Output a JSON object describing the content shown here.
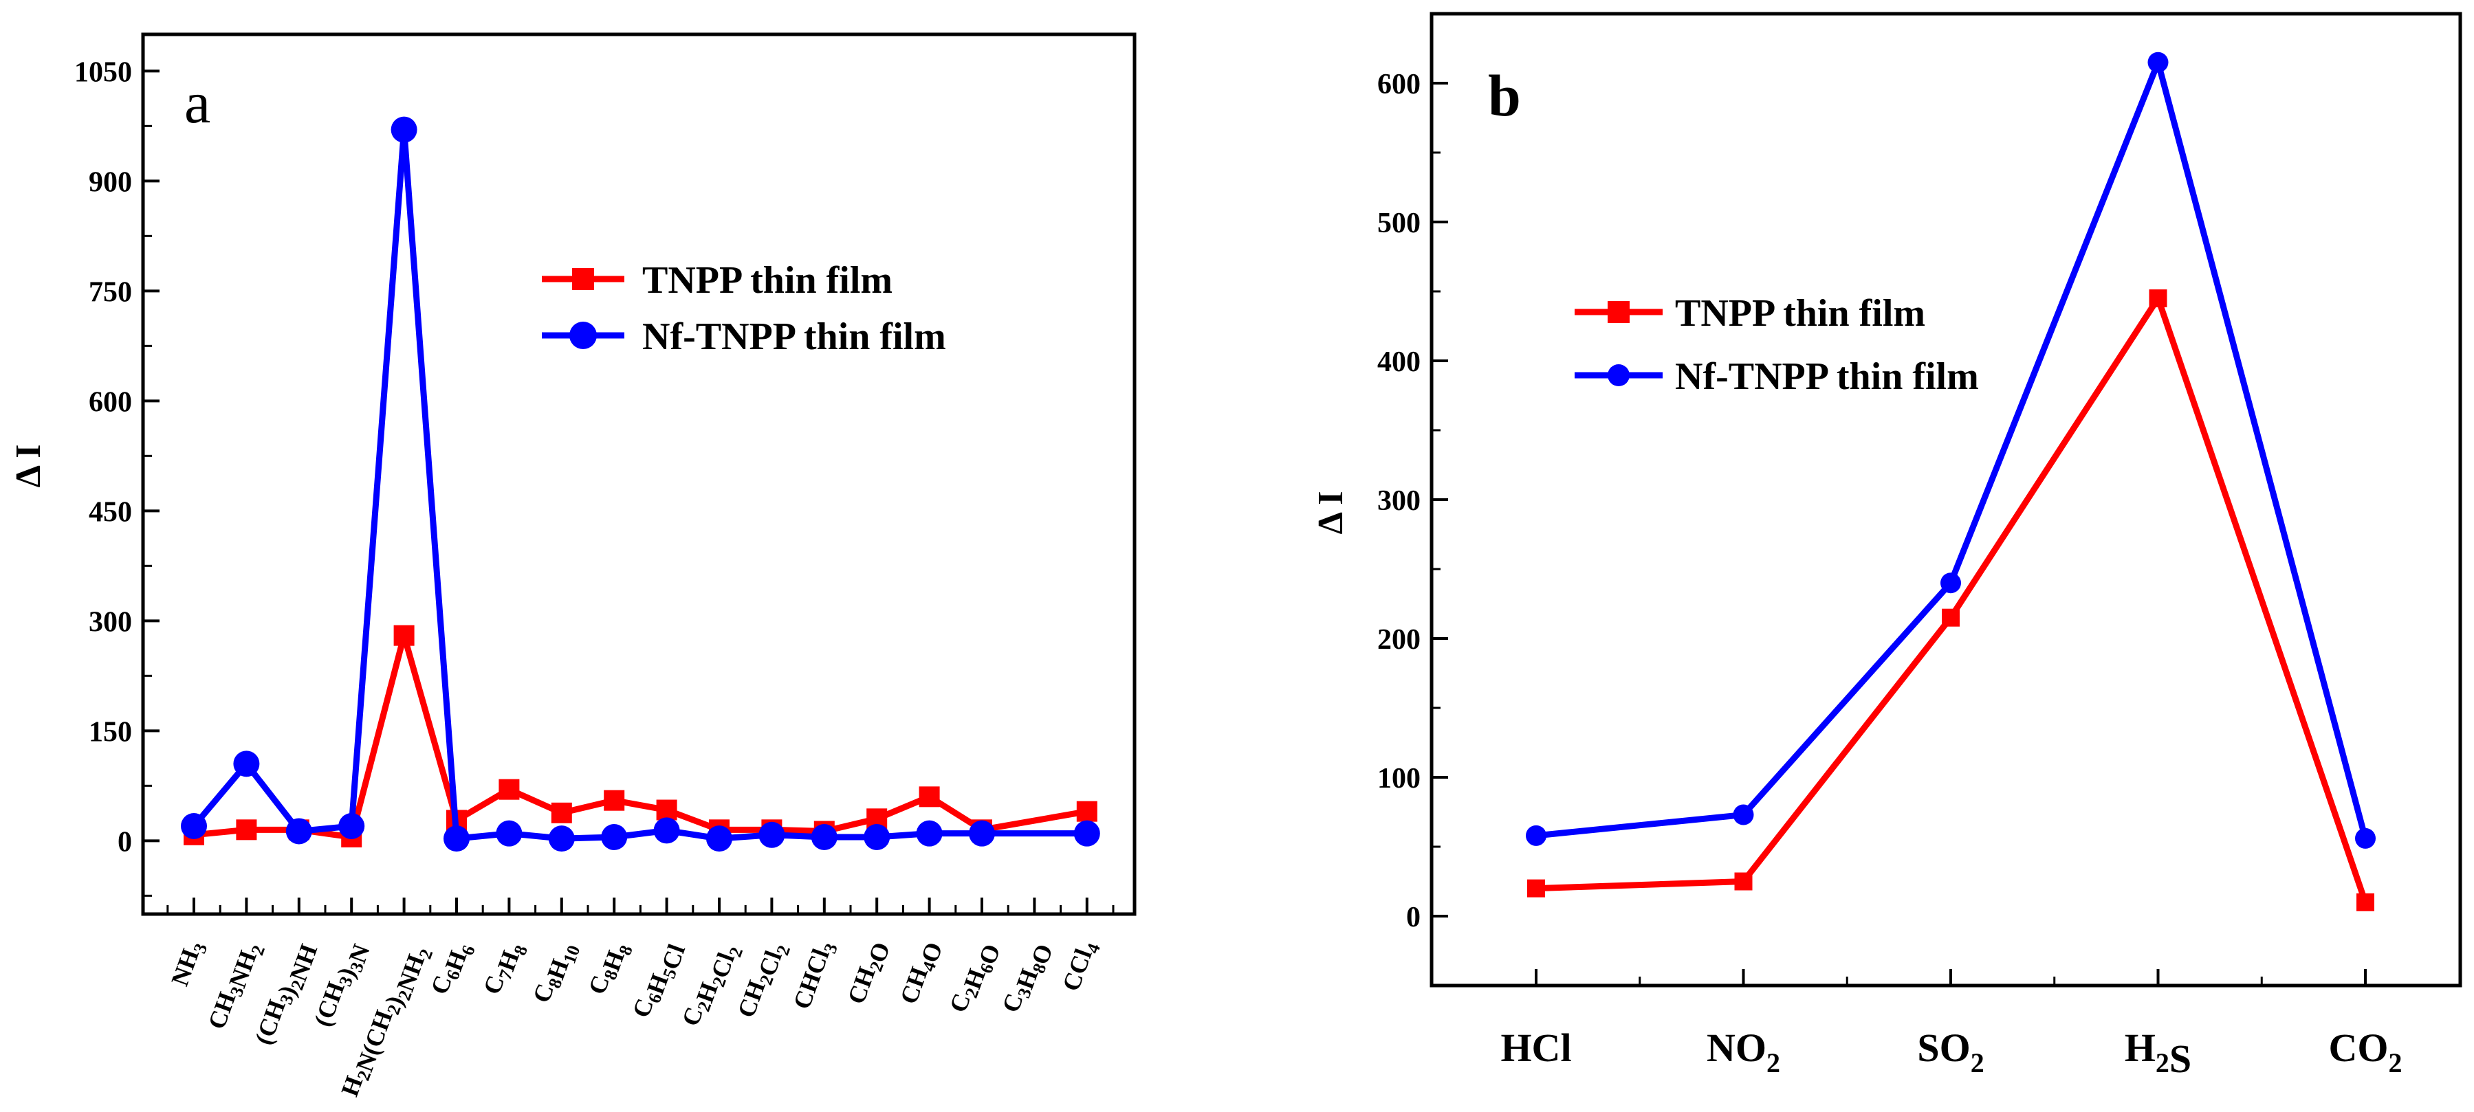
{
  "colors": {
    "tnpp": "#ff0000",
    "nf_tnpp": "#0000ff",
    "axis": "#000000"
  },
  "chart_data": [
    {
      "type": "line",
      "panel_label": "a",
      "ylabel": "Δ I",
      "xlabel": "",
      "ylim": [
        -100,
        1100
      ],
      "yticks": [
        "0",
        "150",
        "300",
        "450",
        "600",
        "750",
        "900",
        "1050"
      ],
      "ytick_values": [
        0,
        150,
        300,
        450,
        600,
        750,
        900,
        1050
      ],
      "categories": [
        {
          "label": "NH3",
          "parts": [
            [
              "NH",
              false
            ],
            [
              "3",
              true
            ]
          ]
        },
        {
          "label": "CH3NH2",
          "parts": [
            [
              "CH",
              false
            ],
            [
              "3",
              true
            ],
            [
              "NH",
              false
            ],
            [
              "2",
              true
            ]
          ]
        },
        {
          "label": "(CH3)2NH",
          "parts": [
            [
              "(CH",
              false
            ],
            [
              "3",
              true
            ],
            [
              ")",
              false
            ],
            [
              "2",
              true
            ],
            [
              "NH",
              false
            ]
          ]
        },
        {
          "label": "(CH3)3N",
          "parts": [
            [
              "(CH",
              false
            ],
            [
              "3",
              true
            ],
            [
              ")",
              false
            ],
            [
              "3",
              true
            ],
            [
              "N",
              false
            ]
          ]
        },
        {
          "label": "H2N(CH2)2NH2",
          "parts": [
            [
              "H",
              false
            ],
            [
              "2",
              true
            ],
            [
              "N(CH",
              false
            ],
            [
              "2",
              true
            ],
            [
              ")",
              false
            ],
            [
              "2",
              true
            ],
            [
              "NH",
              false
            ],
            [
              "2",
              true
            ]
          ]
        },
        {
          "label": "C6H6",
          "parts": [
            [
              "C",
              false
            ],
            [
              "6",
              true
            ],
            [
              "H",
              false
            ],
            [
              "6",
              true
            ]
          ]
        },
        {
          "label": "C7H8",
          "parts": [
            [
              "C",
              false
            ],
            [
              "7",
              true
            ],
            [
              "H",
              false
            ],
            [
              "8",
              true
            ]
          ]
        },
        {
          "label": "C8H10",
          "parts": [
            [
              "C",
              false
            ],
            [
              "8",
              true
            ],
            [
              "H",
              false
            ],
            [
              "10",
              true
            ]
          ]
        },
        {
          "label": "C8H8",
          "parts": [
            [
              "C",
              false
            ],
            [
              "8",
              true
            ],
            [
              "H",
              false
            ],
            [
              "8",
              true
            ]
          ]
        },
        {
          "label": "C6H5Cl",
          "parts": [
            [
              "C",
              false
            ],
            [
              "6",
              true
            ],
            [
              "H",
              false
            ],
            [
              "5",
              true
            ],
            [
              "Cl",
              false
            ]
          ]
        },
        {
          "label": "C2H2Cl2",
          "parts": [
            [
              "C",
              false
            ],
            [
              "2",
              true
            ],
            [
              "H",
              false
            ],
            [
              "2",
              true
            ],
            [
              "Cl",
              false
            ],
            [
              "2",
              true
            ]
          ]
        },
        {
          "label": "CH2Cl2",
          "parts": [
            [
              "CH",
              false
            ],
            [
              "2",
              true
            ],
            [
              "Cl",
              false
            ],
            [
              "2",
              true
            ]
          ]
        },
        {
          "label": "CHCl3",
          "parts": [
            [
              "CHCl",
              false
            ],
            [
              "3",
              true
            ]
          ]
        },
        {
          "label": "CH2O",
          "parts": [
            [
              "CH",
              false
            ],
            [
              "2",
              true
            ],
            [
              "O",
              false
            ]
          ]
        },
        {
          "label": "CH4O",
          "parts": [
            [
              "CH",
              false
            ],
            [
              "4",
              true
            ],
            [
              "O",
              false
            ]
          ]
        },
        {
          "label": "C2H6O",
          "parts": [
            [
              "C",
              false
            ],
            [
              "2",
              true
            ],
            [
              "H",
              false
            ],
            [
              "6",
              true
            ],
            [
              "O",
              false
            ]
          ]
        },
        {
          "label": "C3H8O",
          "parts": [
            [
              "C",
              false
            ],
            [
              "3",
              true
            ],
            [
              "H",
              false
            ],
            [
              "8",
              true
            ],
            [
              "O",
              false
            ]
          ]
        },
        {
          "label": "CCl4",
          "parts": [
            [
              "CCl",
              false
            ],
            [
              "4",
              true
            ]
          ]
        }
      ],
      "series": [
        {
          "name": "TNPP thin film",
          "color": "#ff0000",
          "marker": "square",
          "points": [
            [
              0,
              8
            ],
            [
              1,
              15
            ],
            [
              2,
              15
            ],
            [
              3,
              5
            ],
            [
              4,
              280
            ],
            [
              5,
              28
            ],
            [
              6,
              70
            ],
            [
              7,
              38
            ],
            [
              8,
              55
            ],
            [
              9,
              42
            ],
            [
              10,
              15
            ],
            [
              11,
              15
            ],
            [
              12,
              13
            ],
            [
              13,
              30
            ],
            [
              14,
              60
            ],
            [
              15,
              15
            ],
            [
              17,
              40
            ]
          ]
        },
        {
          "name": "Nf-TNPP thin film",
          "color": "#0000ff",
          "marker": "circle",
          "points": [
            [
              0,
              20
            ],
            [
              1,
              105
            ],
            [
              2,
              13
            ],
            [
              3,
              20
            ],
            [
              4,
              970
            ],
            [
              5,
              3
            ],
            [
              6,
              10
            ],
            [
              7,
              3
            ],
            [
              8,
              5
            ],
            [
              9,
              14
            ],
            [
              10,
              3
            ],
            [
              11,
              8
            ],
            [
              12,
              5
            ],
            [
              13,
              5
            ],
            [
              14,
              10
            ],
            [
              15,
              10
            ],
            [
              17,
              10
            ]
          ]
        }
      ],
      "legend": "upper-center"
    },
    {
      "type": "line",
      "panel_label": "b",
      "ylabel": "Δ I",
      "xlabel": "",
      "ylim": [
        -50,
        650
      ],
      "yticks": [
        "0",
        "100",
        "200",
        "300",
        "400",
        "500",
        "600"
      ],
      "ytick_values": [
        0,
        100,
        200,
        300,
        400,
        500,
        600
      ],
      "categories": [
        {
          "label": "HCl",
          "parts": [
            [
              "HCl",
              false
            ]
          ]
        },
        {
          "label": "NO2",
          "parts": [
            [
              "NO",
              false
            ],
            [
              "2",
              true
            ]
          ]
        },
        {
          "label": "SO2",
          "parts": [
            [
              "SO",
              false
            ],
            [
              "2",
              true
            ]
          ]
        },
        {
          "label": "H2S",
          "parts": [
            [
              "H",
              false
            ],
            [
              "2",
              true
            ],
            [
              "S",
              false
            ]
          ]
        },
        {
          "label": "CO2",
          "parts": [
            [
              "CO",
              false
            ],
            [
              "2",
              true
            ]
          ]
        }
      ],
      "series": [
        {
          "name": "TNPP thin film",
          "color": "#ff0000",
          "marker": "square",
          "points": [
            [
              0,
              20
            ],
            [
              1,
              25
            ],
            [
              2,
              215
            ],
            [
              3,
              445
            ],
            [
              4,
              10
            ]
          ]
        },
        {
          "name": "Nf-TNPP thin film",
          "color": "#0000ff",
          "marker": "circle",
          "points": [
            [
              0,
              58
            ],
            [
              1,
              73
            ],
            [
              2,
              240
            ],
            [
              3,
              615
            ],
            [
              4,
              56
            ]
          ]
        }
      ],
      "legend": "upper-left"
    }
  ]
}
